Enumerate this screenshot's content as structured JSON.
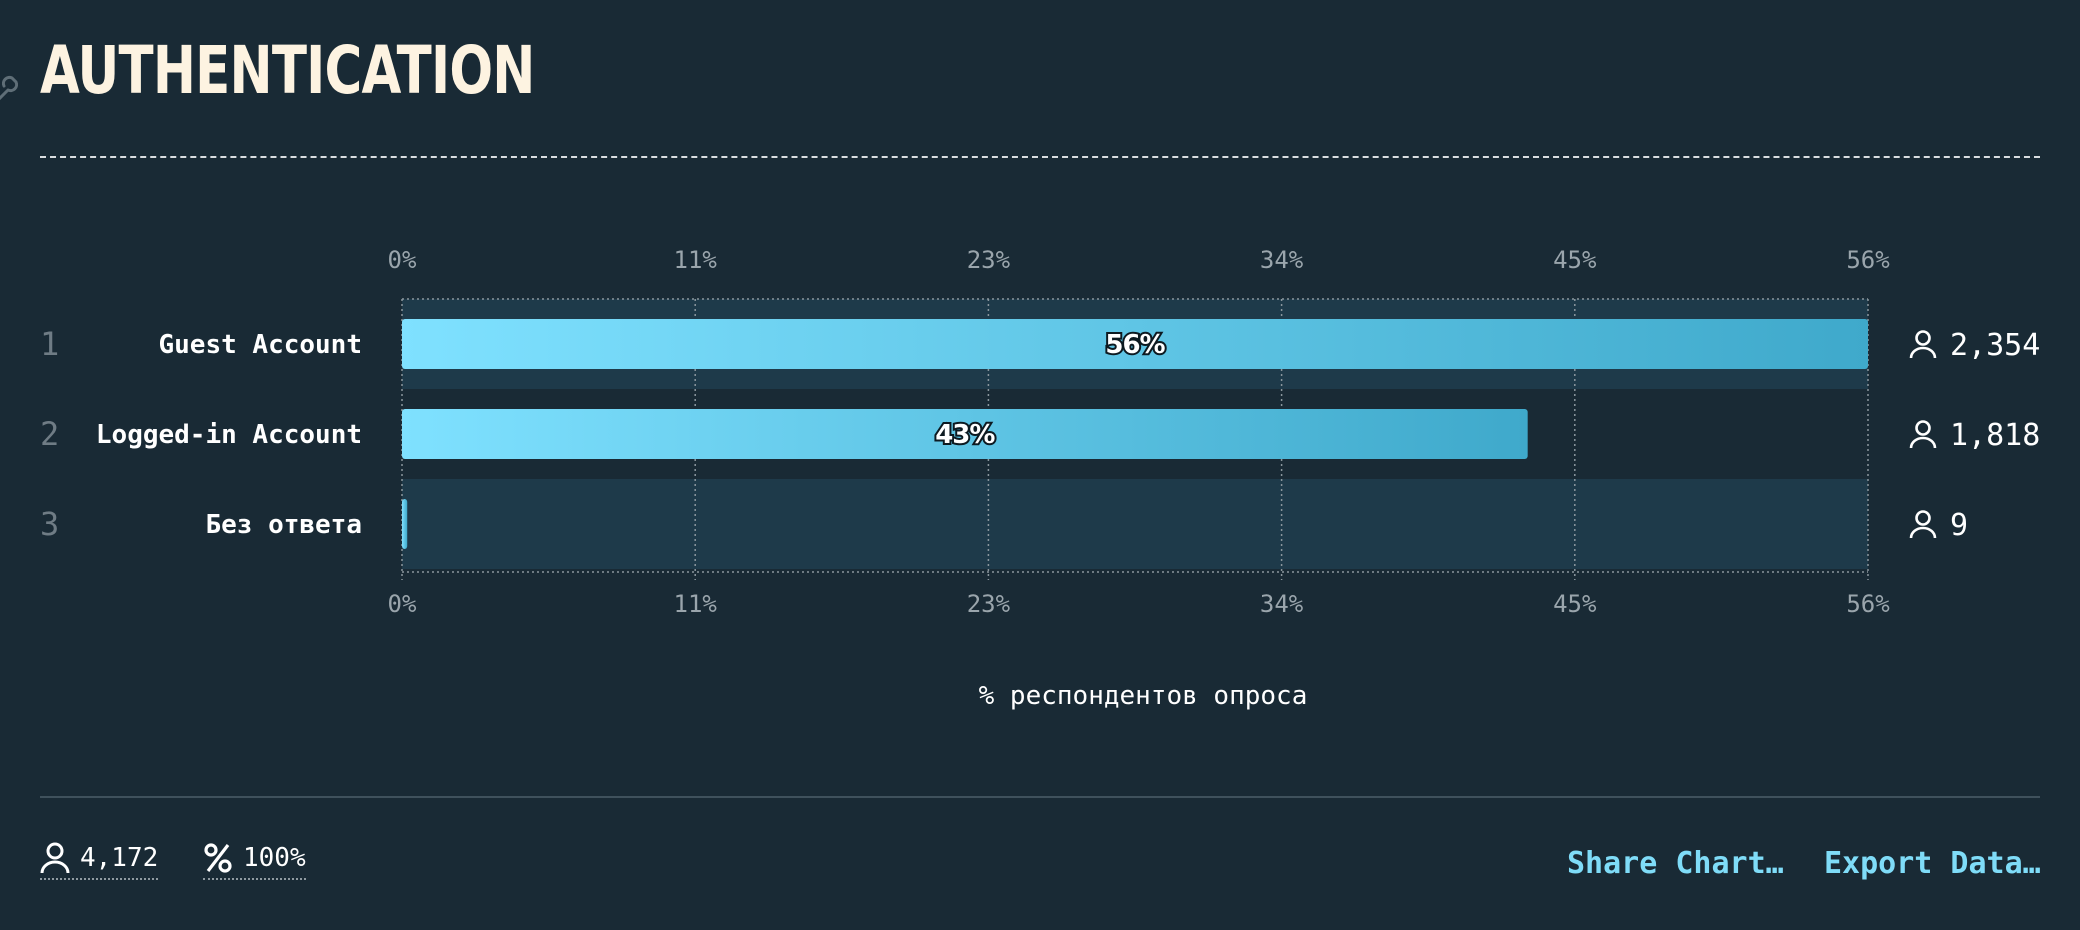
{
  "header": {
    "title": "AUTHENTICATION"
  },
  "chart_data": {
    "type": "bar",
    "orientation": "horizontal",
    "categories": [
      "Guest Account",
      "Logged-in Account",
      "Без ответа"
    ],
    "rank": [
      "1",
      "2",
      "3"
    ],
    "values": [
      56,
      43,
      0.2
    ],
    "value_labels": [
      "56%",
      "43%",
      ""
    ],
    "counts": [
      "2,354",
      "1,818",
      "9"
    ],
    "xlim": [
      0,
      56
    ],
    "ticks": [
      "0%",
      "11%",
      "23%",
      "34%",
      "45%",
      "56%"
    ],
    "xlabel": "% респондентов опроса",
    "grid": true,
    "colors": {
      "bar_start": "#7fe1ff",
      "bar_end": "#3fa9cb",
      "row_band": "#1e3a4a",
      "background": "#192a35"
    }
  },
  "footer": {
    "total_respondents": "4,172",
    "total_percent": "100%",
    "share_label": "Share Chart…",
    "export_label": "Export Data…"
  }
}
